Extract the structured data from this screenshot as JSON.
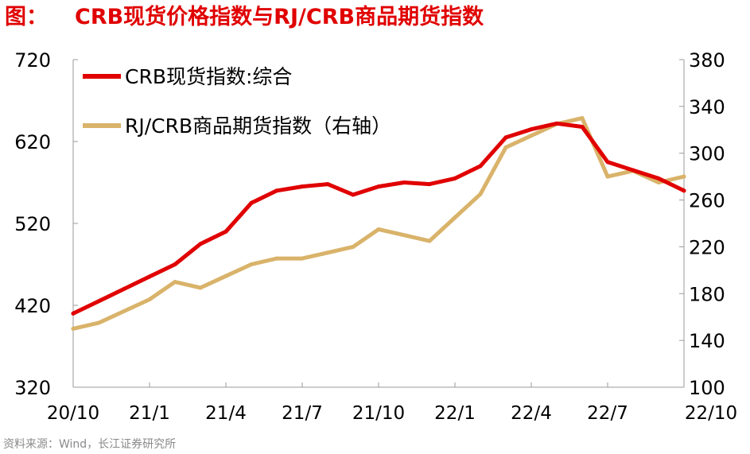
{
  "header": {
    "prefix": "图：",
    "title": "CRB现货价格指数与RJ/CRB商品期货指数"
  },
  "footer": {
    "source": "资料来源：Wind，长江证券研究所"
  },
  "colors": {
    "spot": "#e00000",
    "futures": "#d9b36a",
    "title": "#e00000"
  },
  "chart_data": {
    "type": "line",
    "grid": false,
    "legend_placement": "top-left",
    "x_tick_labels": [
      "20/10",
      "21/1",
      "21/4",
      "21/7",
      "21/10",
      "22/1",
      "22/4",
      "22/7",
      "22/10"
    ],
    "x_range": [
      "2020-10",
      "2022-10"
    ],
    "y_left": {
      "ticks": [
        720,
        620,
        520,
        420,
        320
      ],
      "range": [
        320,
        720
      ]
    },
    "y_right": {
      "ticks": [
        380,
        340,
        300,
        260,
        220,
        180,
        140,
        100
      ],
      "range": [
        100,
        380
      ]
    },
    "series": [
      {
        "name": "CRB现货指数:综合",
        "axis": "left",
        "x": [
          "2020-10",
          "2020-11",
          "2020-12",
          "2021-01",
          "2021-02",
          "2021-03",
          "2021-04",
          "2021-05",
          "2021-06",
          "2021-07",
          "2021-08",
          "2021-09",
          "2021-10",
          "2021-11",
          "2021-12",
          "2022-01",
          "2022-02",
          "2022-03",
          "2022-04",
          "2022-05",
          "2022-06",
          "2022-07",
          "2022-08",
          "2022-09",
          "2022-10"
        ],
        "values": [
          410,
          425,
          440,
          455,
          470,
          495,
          510,
          545,
          560,
          565,
          568,
          555,
          565,
          570,
          568,
          575,
          590,
          625,
          635,
          642,
          638,
          595,
          585,
          575,
          560
        ]
      },
      {
        "name": "RJ/CRB商品期货指数（右轴）",
        "axis": "right",
        "x": [
          "2020-10",
          "2020-11",
          "2020-12",
          "2021-01",
          "2021-02",
          "2021-03",
          "2021-04",
          "2021-05",
          "2021-06",
          "2021-07",
          "2021-08",
          "2021-09",
          "2021-10",
          "2021-11",
          "2021-12",
          "2022-01",
          "2022-02",
          "2022-03",
          "2022-04",
          "2022-05",
          "2022-06",
          "2022-07",
          "2022-08",
          "2022-09",
          "2022-10"
        ],
        "values": [
          150,
          155,
          165,
          175,
          190,
          185,
          195,
          205,
          210,
          210,
          215,
          220,
          235,
          230,
          225,
          245,
          265,
          305,
          315,
          325,
          330,
          280,
          285,
          275,
          280
        ]
      }
    ]
  }
}
